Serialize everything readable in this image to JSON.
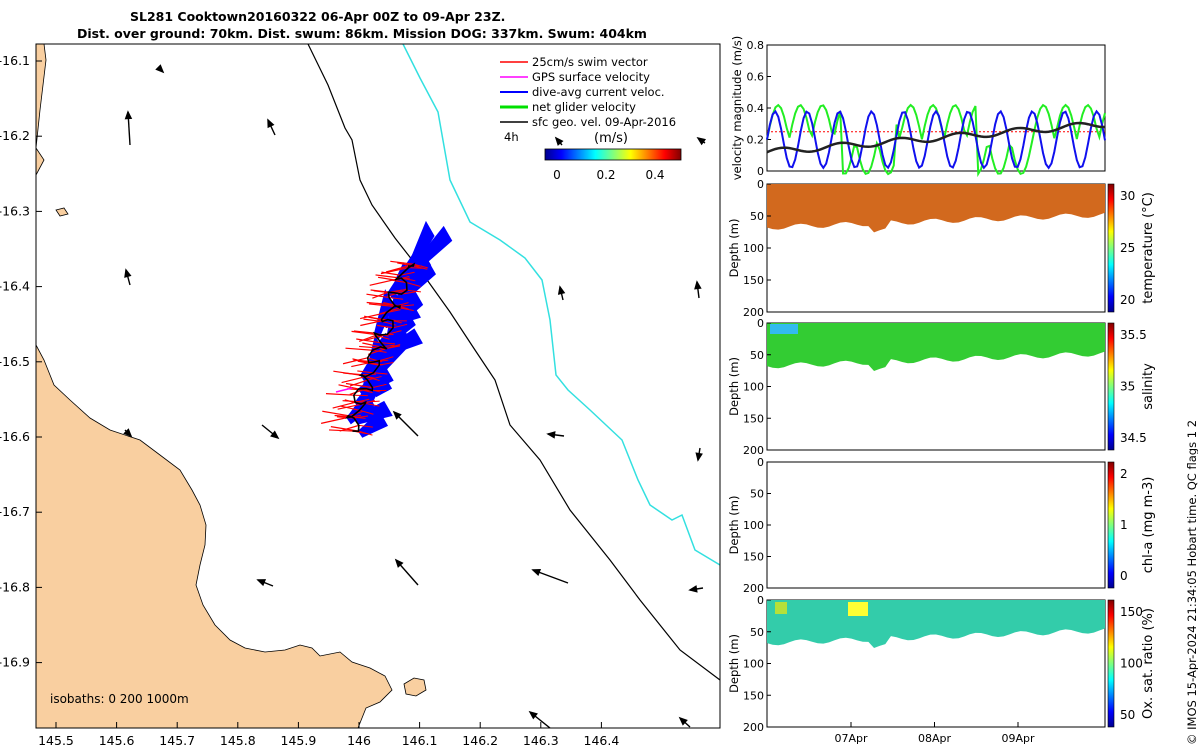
{
  "header": {
    "title_line1": "SL281 Cooktown20160322 06-Apr 00Z to 09-Apr 23Z.",
    "title_line2": "Dist. over ground: 70km. Dist. swum: 86km. Mission DOG: 337km. Swum: 404km"
  },
  "map": {
    "lon_ticks": [
      "145.5",
      "145.6",
      "145.7",
      "145.8",
      "145.9",
      "146",
      "146.1",
      "146.2",
      "146.3",
      "146.4"
    ],
    "lat_ticks": [
      "-16.1",
      "-16.2",
      "-16.3",
      "-16.4",
      "-16.5",
      "-16.6",
      "-16.7",
      "-16.8",
      "-16.9"
    ],
    "legend": [
      {
        "label": "25cm/s swim vector",
        "color": "#ff0000"
      },
      {
        "label": "GPS surface velocity",
        "color": "#ff00ff"
      },
      {
        "label": "dive-avg current veloc.",
        "color": "#0000ff"
      },
      {
        "label": "net glider velocity",
        "color": "#00e000"
      },
      {
        "label": "sfc geo. vel. 09-Apr-2016",
        "color": "#000000"
      }
    ],
    "interval_label": "4h",
    "colorbar_unit": "(m/s)",
    "colorbar_ticks": [
      "0",
      "0.2",
      "0.4"
    ],
    "isobaths_label": "isobaths: 0   200  1000m",
    "land_color": "#f9cfa0",
    "isobath_200_color": "#000000",
    "isobath_1000_color": "#33e0e0"
  },
  "panels": {
    "velocity": {
      "ylabel": "velocity magnitude (m/s)",
      "yticks": [
        "0",
        "0.2",
        "0.4",
        "0.6",
        "0.8"
      ]
    },
    "temperature": {
      "ylabel": "Depth (m)",
      "yticks": [
        "0",
        "50",
        "100",
        "150",
        "200"
      ],
      "cbar_label": "temperature (°C)",
      "cbar_ticks": [
        "30",
        "25",
        "20"
      ]
    },
    "salinity": {
      "ylabel": "Depth (m)",
      "yticks": [
        "0",
        "50",
        "100",
        "150",
        "200"
      ],
      "cbar_label": "salinity",
      "cbar_ticks": [
        "35.5",
        "35",
        "34.5"
      ]
    },
    "chla": {
      "ylabel": "Depth (m)",
      "yticks": [
        "0",
        "50",
        "100",
        "150",
        "200"
      ],
      "cbar_label": "chl-a (mg m-3)",
      "cbar_ticks": [
        "2",
        "1",
        "0"
      ]
    },
    "oxygen": {
      "ylabel": "Depth (m)",
      "yticks": [
        "0",
        "50",
        "100",
        "150",
        "200"
      ],
      "cbar_label": "Ox. sat. ratio (%)",
      "cbar_ticks": [
        "150",
        "100",
        "50"
      ]
    },
    "date_ticks": [
      "07Apr",
      "08Apr",
      "09Apr"
    ]
  },
  "credit": "© IMOS 15-Apr-2024 21:34:05 Hobart time. QC flags 1  2"
}
